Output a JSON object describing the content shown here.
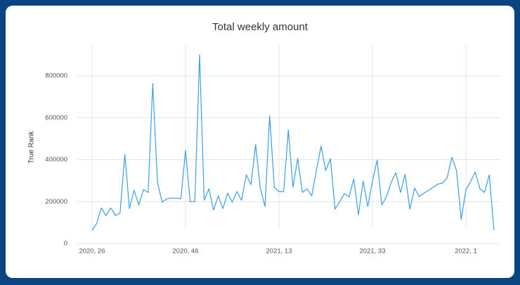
{
  "chart_data": {
    "type": "line",
    "title": "Total weekly amount",
    "y_label": "True Rank",
    "categories": [
      "2020, 26",
      null,
      null,
      null,
      null,
      null,
      null,
      null,
      null,
      null,
      null,
      null,
      null,
      null,
      null,
      null,
      null,
      null,
      null,
      null,
      "2020, 46",
      null,
      null,
      null,
      null,
      null,
      null,
      null,
      null,
      null,
      null,
      null,
      null,
      null,
      null,
      null,
      null,
      null,
      null,
      null,
      "2021, 13",
      null,
      null,
      null,
      null,
      null,
      null,
      null,
      null,
      null,
      null,
      null,
      null,
      null,
      null,
      null,
      null,
      null,
      null,
      null,
      "2021, 33",
      null,
      null,
      null,
      null,
      null,
      null,
      null,
      null,
      null,
      null,
      null,
      null,
      null,
      null,
      null,
      null,
      null,
      null,
      null,
      "2022, 1",
      null,
      null,
      null,
      null,
      null,
      null
    ],
    "series": [
      {
        "name": "Total weekly amount",
        "color": "#3a9ee4",
        "values": [
          63000,
          97000,
          170000,
          134000,
          170000,
          134000,
          147000,
          425000,
          167000,
          254000,
          184000,
          257000,
          244000,
          763000,
          291000,
          197000,
          214000,
          217000,
          217000,
          214000,
          445000,
          200000,
          200000,
          900000,
          207000,
          261000,
          160000,
          228000,
          167000,
          241000,
          197000,
          248000,
          207000,
          328000,
          281000,
          472000,
          264000,
          177000,
          609000,
          268000,
          248000,
          248000,
          542000,
          268000,
          405000,
          244000,
          261000,
          228000,
          348000,
          465000,
          348000,
          405000,
          164000,
          200000,
          238000,
          224000,
          308000,
          137000,
          298000,
          177000,
          298000,
          398000,
          184000,
          224000,
          291000,
          338000,
          244000,
          331000,
          164000,
          264000,
          224000,
          241000,
          254000,
          268000,
          284000,
          288000,
          315000,
          412000,
          348000,
          114000,
          258000,
          295000,
          341000,
          261000,
          244000,
          328000,
          63000
        ]
      }
    ],
    "ylim": [
      0,
      950000
    ],
    "yticks": [
      0,
      200000,
      400000,
      600000,
      800000
    ],
    "grid": true
  }
}
